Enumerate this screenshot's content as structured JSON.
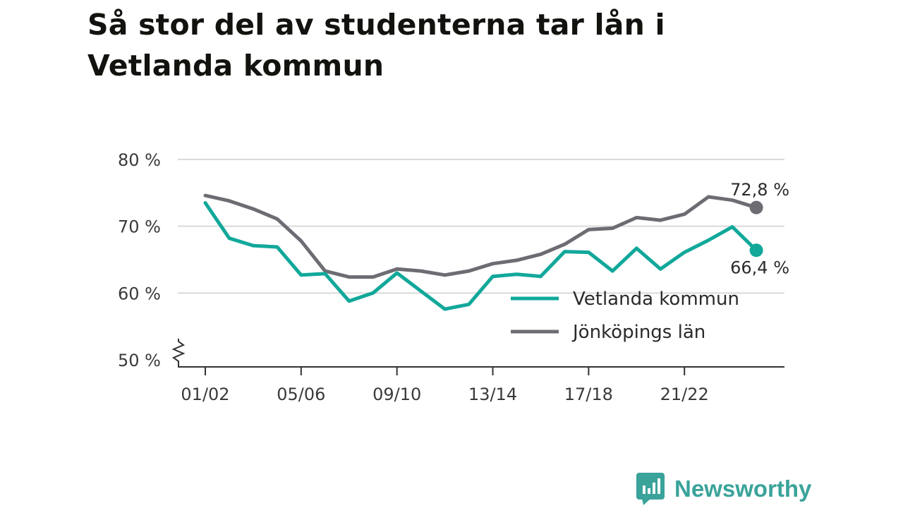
{
  "title": "Så stor del av studenterna tar lån i Vetlanda kommun",
  "brand": {
    "name": "Newsworthy",
    "logo_icon": "newsworthy-logo-icon",
    "color": "#3aa39a"
  },
  "colors": {
    "vetlanda": "#11a89a",
    "jonkoping": "#6d6c73",
    "grid": "#d9d9d9",
    "axis": "#333333"
  },
  "chart_data": {
    "type": "line",
    "title": "Så stor del av studenterna tar lån i Vetlanda kommun",
    "xlabel": "",
    "ylabel": "",
    "x": [
      "01/02",
      "02/03",
      "03/04",
      "04/05",
      "05/06",
      "06/07",
      "07/08",
      "08/09",
      "09/10",
      "10/11",
      "11/12",
      "12/13",
      "13/14",
      "14/15",
      "15/16",
      "16/17",
      "17/18",
      "18/19",
      "19/20",
      "20/21",
      "21/22",
      "22/23",
      "23/24",
      "24/25"
    ],
    "x_tick_labels": [
      "01/02",
      "05/06",
      "09/10",
      "13/14",
      "17/18",
      "21/22"
    ],
    "y_ticks": [
      50,
      60,
      70,
      80
    ],
    "y_tick_labels": [
      "50 %",
      "60 %",
      "70 %",
      "80 %"
    ],
    "ylim": [
      50,
      80
    ],
    "y_axis_break": true,
    "grid": true,
    "legend_position": "bottom-right",
    "series": [
      {
        "name": "Vetlanda kommun",
        "color": "#11a89a",
        "values": [
          73.5,
          68.2,
          67.1,
          66.9,
          62.7,
          62.9,
          58.8,
          60.0,
          63.0,
          60.3,
          57.6,
          58.3,
          62.5,
          62.8,
          62.5,
          66.2,
          66.1,
          63.3,
          66.7,
          63.6,
          66.1,
          67.9,
          69.9,
          66.4
        ],
        "end_label": "66,4 %"
      },
      {
        "name": "Jönköpings län",
        "color": "#6d6c73",
        "values": [
          74.6,
          73.8,
          72.6,
          71.1,
          67.8,
          63.3,
          62.4,
          62.4,
          63.6,
          63.3,
          62.7,
          63.3,
          64.4,
          64.9,
          65.8,
          67.3,
          69.5,
          69.7,
          71.3,
          70.9,
          71.8,
          74.4,
          73.9,
          72.8
        ],
        "end_label": "72,8 %"
      }
    ]
  }
}
